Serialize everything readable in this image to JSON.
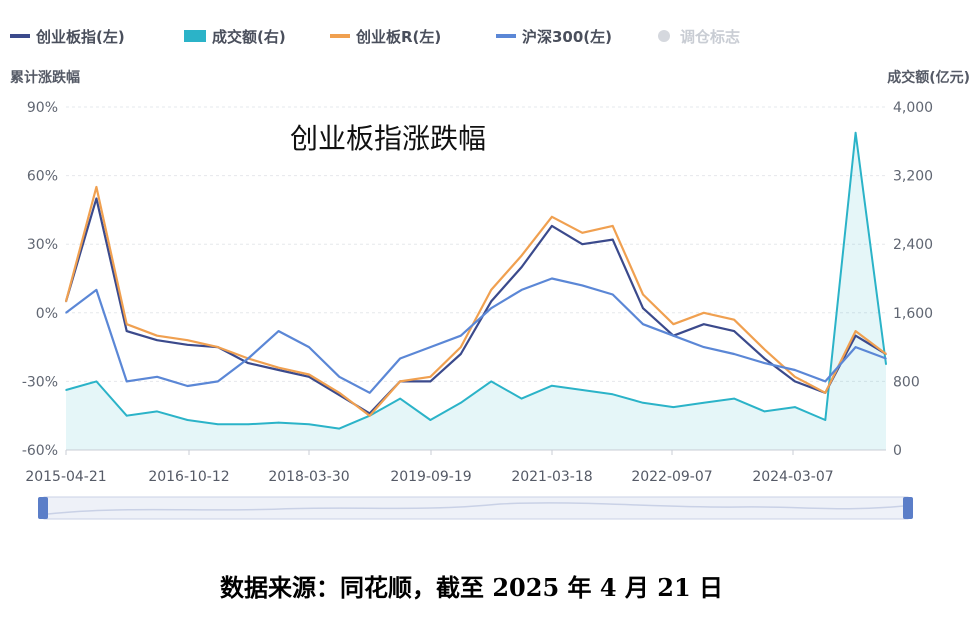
{
  "legend": {
    "items": [
      {
        "label": "创业板指(左)",
        "color": "#3b4a8c",
        "marker": "line",
        "enabled": true
      },
      {
        "label": "成交额(右)",
        "color": "#2bb3c8",
        "marker": "bar",
        "enabled": true
      },
      {
        "label": "创业板R(左)",
        "color": "#f0a050",
        "marker": "line",
        "enabled": true
      },
      {
        "label": "沪深300(左)",
        "color": "#5b87d6",
        "marker": "line",
        "enabled": true
      },
      {
        "label": "调仓标志",
        "color": "#d5d8de",
        "marker": "dot",
        "enabled": false
      }
    ]
  },
  "annotation": "创业板指涨跌幅",
  "source_note": "数据来源：同花顺，截至 2025 年 4 月 21 日",
  "chart_data": {
    "type": "line",
    "x_ticks": [
      "2015-04-21",
      "2016-10-12",
      "2018-03-30",
      "2019-09-19",
      "2021-03-18",
      "2022-09-07",
      "2024-03-07"
    ],
    "y_left": {
      "label": "累计涨跌幅",
      "ticks": [
        "90%",
        "60%",
        "30%",
        "0%",
        "-30%",
        "-60%"
      ],
      "range": [
        -60,
        90
      ],
      "unit": "%"
    },
    "y_right": {
      "label": "成交额(亿元)",
      "ticks": [
        "4,000",
        "3,200",
        "2,400",
        "1,600",
        "800",
        "0"
      ],
      "range": [
        0,
        4000
      ]
    },
    "x": [
      "2015-04",
      "2015-06",
      "2015-09",
      "2016-01",
      "2016-04",
      "2016-10",
      "2017-04",
      "2017-10",
      "2018-03",
      "2018-10",
      "2019-02",
      "2019-04",
      "2019-09",
      "2020-02",
      "2020-07",
      "2020-12",
      "2021-03",
      "2021-08",
      "2021-12",
      "2022-04",
      "2022-09",
      "2023-01",
      "2023-06",
      "2023-12",
      "2024-03",
      "2024-09",
      "2024-10",
      "2025-04"
    ],
    "series": [
      {
        "name": "创业板指(左)",
        "axis": "left",
        "color": "#3b4a8c",
        "values": [
          5,
          50,
          -8,
          -12,
          -14,
          -15,
          -22,
          -25,
          -28,
          -36,
          -44,
          -30,
          -30,
          -18,
          5,
          20,
          38,
          30,
          32,
          2,
          -10,
          -5,
          -8,
          -20,
          -30,
          -35,
          -10,
          -18
        ]
      },
      {
        "name": "创业板R(左)",
        "axis": "left",
        "color": "#f0a050",
        "values": [
          5,
          55,
          -5,
          -10,
          -12,
          -15,
          -20,
          -24,
          -27,
          -35,
          -45,
          -30,
          -28,
          -15,
          10,
          25,
          42,
          35,
          38,
          8,
          -5,
          0,
          -3,
          -16,
          -28,
          -35,
          -8,
          -18
        ]
      },
      {
        "name": "沪深300(左)",
        "axis": "left",
        "color": "#5b87d6",
        "values": [
          0,
          10,
          -30,
          -28,
          -32,
          -30,
          -20,
          -8,
          -15,
          -28,
          -35,
          -20,
          -15,
          -10,
          2,
          10,
          15,
          12,
          8,
          -5,
          -10,
          -15,
          -18,
          -22,
          -25,
          -30,
          -15,
          -20
        ]
      },
      {
        "name": "成交额(右)",
        "axis": "right",
        "color": "#2bb3c8",
        "values": [
          700,
          800,
          400,
          450,
          350,
          300,
          300,
          320,
          300,
          250,
          400,
          600,
          350,
          550,
          800,
          600,
          750,
          700,
          650,
          550,
          500,
          550,
          600,
          450,
          500,
          350,
          3700,
          1000
        ]
      }
    ]
  }
}
